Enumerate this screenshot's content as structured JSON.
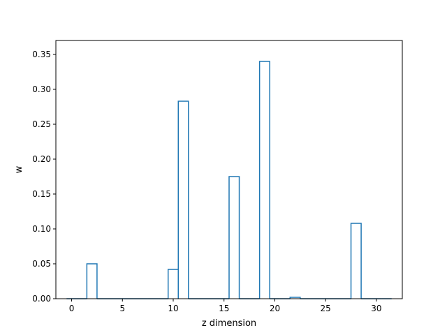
{
  "chart_data": {
    "type": "bar",
    "style": "step-outline",
    "title": "",
    "xlabel": "z dimension",
    "ylabel": "w",
    "xlim": [
      -1.55,
      32.55
    ],
    "ylim": [
      0,
      0.37
    ],
    "xticks": [
      0,
      5,
      10,
      15,
      20,
      25,
      30
    ],
    "yticks": [
      0.0,
      0.05,
      0.1,
      0.15,
      0.2,
      0.25,
      0.3,
      0.35
    ],
    "x": [
      0,
      1,
      2,
      3,
      4,
      5,
      6,
      7,
      8,
      9,
      10,
      11,
      12,
      13,
      14,
      15,
      16,
      17,
      18,
      19,
      20,
      21,
      22,
      23,
      24,
      25,
      26,
      27,
      28,
      29,
      30,
      31
    ],
    "values": [
      0,
      0,
      0.05,
      0,
      0,
      0,
      0,
      0,
      0,
      0,
      0.042,
      0.283,
      0,
      0,
      0,
      0,
      0.175,
      0,
      0,
      0.34,
      0,
      0,
      0.002,
      0,
      0,
      0,
      0,
      0,
      0.108,
      0,
      0,
      0
    ],
    "grid": false,
    "color": "#1f77b4"
  }
}
